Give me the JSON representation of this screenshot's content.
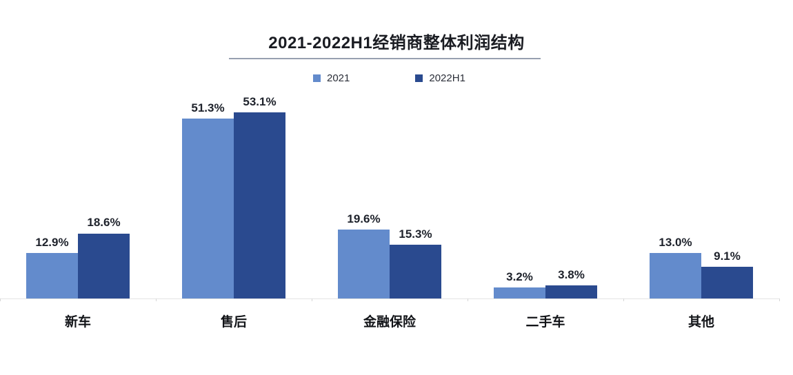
{
  "chart_data": {
    "type": "bar",
    "title": "2021-2022H1经销商整体利润结构",
    "categories": [
      "新车",
      "售后",
      "金融保险",
      "二手车",
      "其他"
    ],
    "series": [
      {
        "name": "2021",
        "color": "#638BCC",
        "values": [
          12.9,
          51.3,
          19.6,
          3.2,
          13.0
        ]
      },
      {
        "name": "2022H1",
        "color": "#2A4A8F",
        "values": [
          18.6,
          53.1,
          15.3,
          3.8,
          9.1
        ]
      }
    ],
    "value_labels": [
      [
        "12.9%",
        "51.3%",
        "19.6%",
        "3.2%",
        "13.0%"
      ],
      [
        "18.6%",
        "53.1%",
        "15.3%",
        "3.8%",
        "9.1%"
      ]
    ],
    "xlabel": "",
    "ylabel": "",
    "ylim": [
      0,
      60
    ],
    "grid": false,
    "legend_position": "top",
    "axis_color": "#e3e3e3",
    "tick_color": "#d6d6d6"
  }
}
